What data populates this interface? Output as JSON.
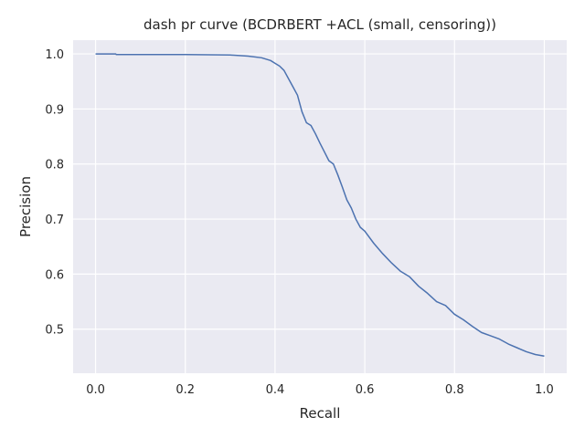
{
  "chart_data": {
    "type": "line",
    "title": "dash pr curve (BCDRBERT +ACL (small, censoring))",
    "xlabel": "Recall",
    "ylabel": "Precision",
    "xlim": [
      -0.05,
      1.05
    ],
    "ylim": [
      0.42,
      1.025
    ],
    "xticks": [
      0.0,
      0.2,
      0.4,
      0.6,
      0.8,
      1.0
    ],
    "xtick_labels": [
      "0.0",
      "0.2",
      "0.4",
      "0.6",
      "0.8",
      "1.0"
    ],
    "yticks": [
      0.5,
      0.6,
      0.7,
      0.8,
      0.9,
      1.0
    ],
    "ytick_labels": [
      "0.5",
      "0.6",
      "0.7",
      "0.8",
      "0.9",
      "1.0"
    ],
    "grid": true,
    "background": "#eaeaf2",
    "line_color": "#4c72b0",
    "series": [
      {
        "x": [
          0.0,
          0.045,
          0.046,
          0.1,
          0.2,
          0.3,
          0.34,
          0.37,
          0.39,
          0.4,
          0.41,
          0.42,
          0.43,
          0.44,
          0.45,
          0.46,
          0.47,
          0.48,
          0.49,
          0.5,
          0.51,
          0.52,
          0.53,
          0.54,
          0.55,
          0.56,
          0.57,
          0.58,
          0.59,
          0.6,
          0.62,
          0.64,
          0.66,
          0.68,
          0.7,
          0.72,
          0.74,
          0.76,
          0.78,
          0.8,
          0.82,
          0.84,
          0.86,
          0.88,
          0.9,
          0.92,
          0.94,
          0.96,
          0.98,
          1.0
        ],
        "y": [
          1.0,
          1.0,
          0.999,
          0.999,
          0.999,
          0.998,
          0.996,
          0.993,
          0.988,
          0.983,
          0.978,
          0.97,
          0.955,
          0.94,
          0.925,
          0.895,
          0.875,
          0.87,
          0.855,
          0.838,
          0.822,
          0.806,
          0.8,
          0.78,
          0.758,
          0.735,
          0.72,
          0.7,
          0.685,
          0.678,
          0.656,
          0.637,
          0.62,
          0.605,
          0.595,
          0.578,
          0.565,
          0.55,
          0.543,
          0.527,
          0.517,
          0.505,
          0.494,
          0.488,
          0.482,
          0.473,
          0.466,
          0.459,
          0.454,
          0.451
        ]
      }
    ]
  }
}
